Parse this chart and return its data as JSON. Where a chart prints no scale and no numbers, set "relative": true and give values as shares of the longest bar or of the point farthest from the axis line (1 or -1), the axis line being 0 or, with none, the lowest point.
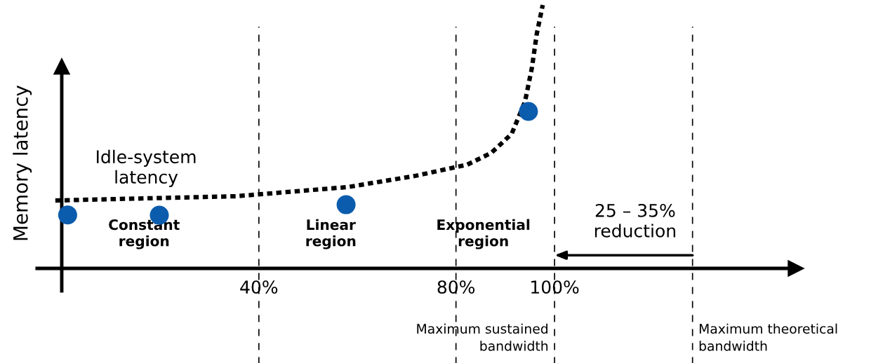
{
  "chart_data": {
    "type": "line",
    "relative": true,
    "ylabel": "Memory latency",
    "xlim": [
      -5,
      149
    ],
    "xticks": [
      {
        "value": 40,
        "label": "40%"
      },
      {
        "value": 80,
        "label": "80%"
      },
      {
        "value": 100,
        "label": "100%"
      }
    ],
    "series": [
      {
        "color": "#000000",
        "line_style": "dashed",
        "x": [
          -1.3,
          35.3,
          58.1,
          71.9,
          82.3,
          87.2,
          91.3,
          94.0,
          95.4,
          96.4,
          97.6
        ],
        "values": [
          0.258,
          0.274,
          0.309,
          0.352,
          0.394,
          0.439,
          0.511,
          0.633,
          0.761,
          0.891,
          1.0
        ]
      },
      {
        "type": "scatter",
        "color": "#0b5cad",
        "marker": "circle",
        "x": [
          1.2,
          19.8,
          57.7,
          94.7
        ],
        "values": [
          0.203,
          0.202,
          0.242,
          0.596
        ]
      }
    ],
    "ref_lines": [
      {
        "axis": "x",
        "value": 40,
        "line_style": "dashed",
        "color": "#000000"
      },
      {
        "axis": "x",
        "value": 80,
        "line_style": "dashed",
        "color": "#000000"
      },
      {
        "axis": "x",
        "value": 100,
        "line_style": "dashed",
        "color": "#000000",
        "label": "Maximum sustained\nbandwidth"
      },
      {
        "axis": "x",
        "value": 128,
        "line_style": "dashed",
        "color": "#000000",
        "label": "Maximum theoretical\nbandwidth"
      }
    ],
    "annotations": [
      "Idle-system\nlatency",
      "Constant\nregion",
      "Linear\nregion",
      "Exponential\nregion",
      "25 – 35%\nreduction"
    ],
    "grid": false,
    "legend": false
  }
}
